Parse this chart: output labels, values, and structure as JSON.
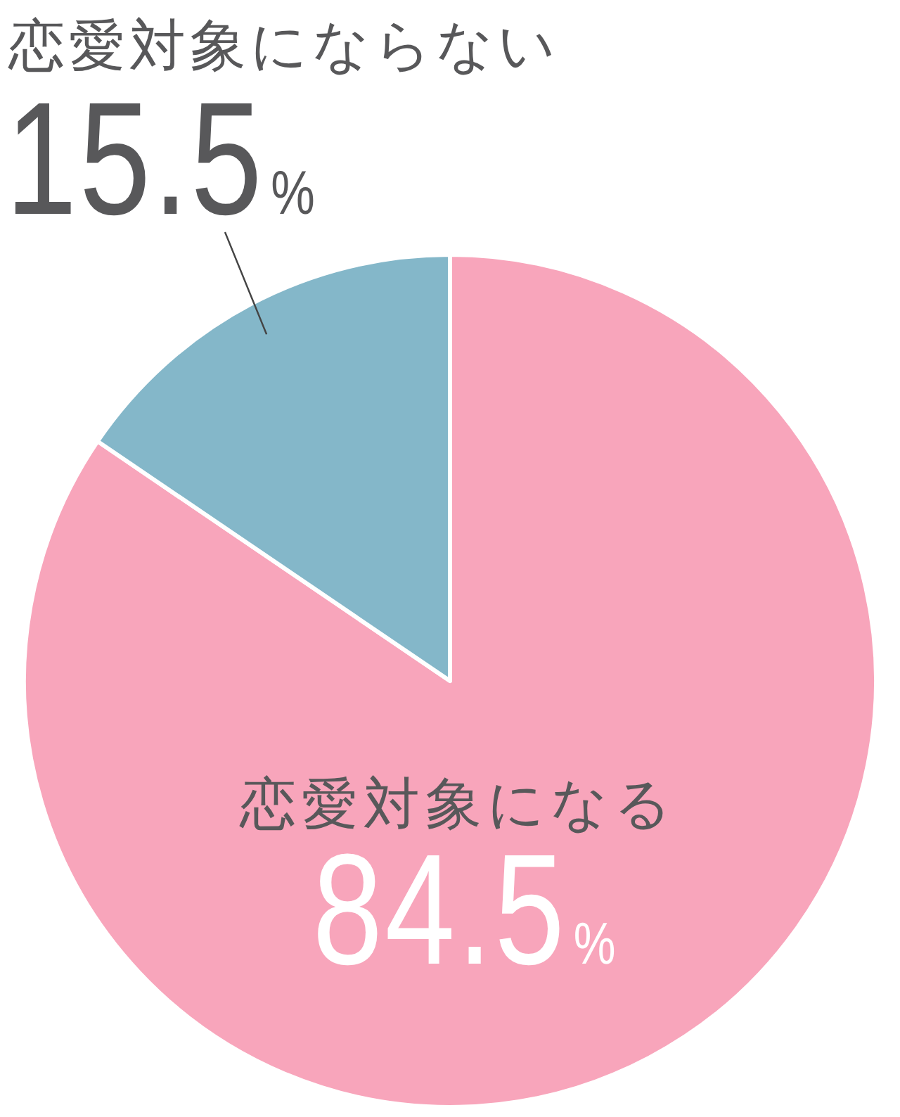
{
  "chart_data": {
    "type": "pie",
    "categories": [
      "恋愛対象になる",
      "恋愛対象にならない"
    ],
    "values": [
      84.5,
      15.5
    ],
    "colors": [
      "#f8a5bb",
      "#84b7c9"
    ],
    "value_labels": [
      "84.5%",
      "15.5%"
    ]
  }
}
